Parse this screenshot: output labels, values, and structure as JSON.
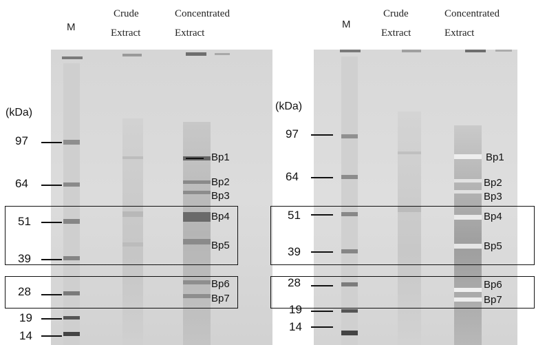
{
  "left_panel": {
    "lane_headers": {
      "marker": "M",
      "crude": [
        "Crude",
        "Extract"
      ],
      "concentrated": [
        "Concentrated",
        "Extract"
      ]
    },
    "unit": "(kDa)",
    "markers": [
      "97",
      "64",
      "51",
      "39",
      "28",
      "19",
      "14"
    ],
    "bands": [
      "Bp1",
      "Bp2",
      "Bp3",
      "Bp4",
      "Bp5",
      "Bp6",
      "Bp7"
    ]
  },
  "right_panel": {
    "lane_headers": {
      "marker": "M",
      "crude": [
        "Crude",
        "Extract"
      ],
      "concentrated": [
        "Concentrated",
        "Extract"
      ]
    },
    "unit": "(kDa)",
    "markers": [
      "97",
      "64",
      "51",
      "39",
      "28",
      "19",
      "14"
    ],
    "bands": [
      "Bp1",
      "Bp2",
      "Bp3",
      "Bp4",
      "Bp5",
      "Bp6",
      "Bp7"
    ]
  },
  "colors": {
    "gel_background": "#dadada",
    "band_dark": "#555555",
    "frame": "#111111"
  }
}
